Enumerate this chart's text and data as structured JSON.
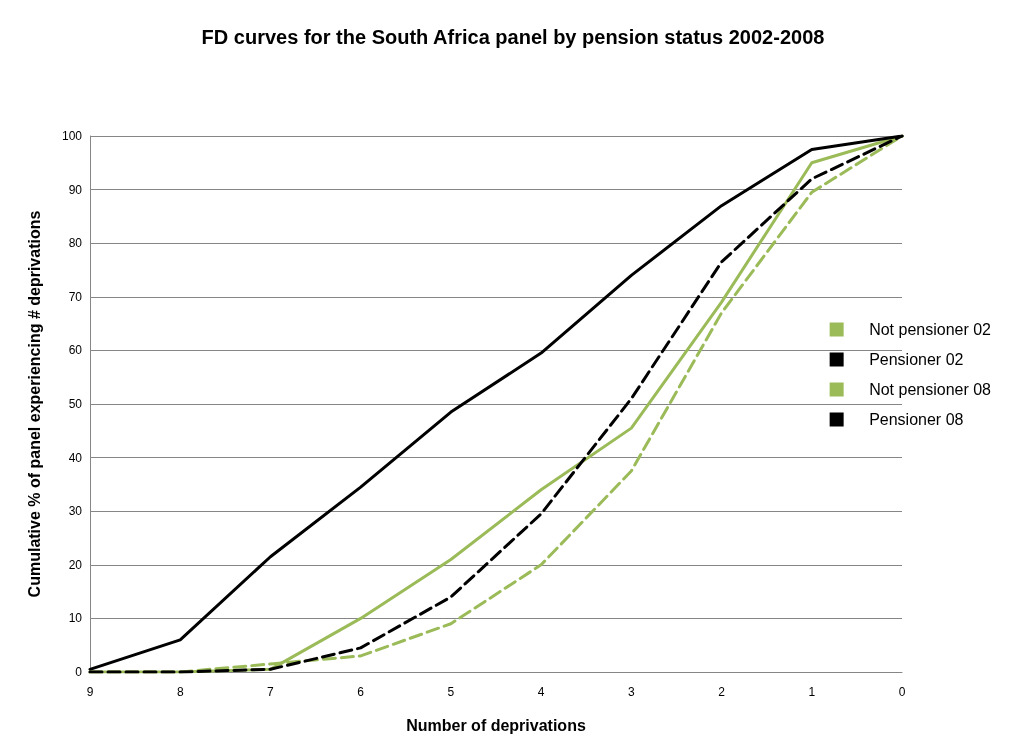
{
  "chart_data": {
    "type": "line",
    "title": "FD curves for the South Africa panel by pension status 2002-2008",
    "xlabel": "Number of deprivations",
    "ylabel": "Cumulative % of panel experiencing # deprivations",
    "categories": [
      "9",
      "8",
      "7",
      "6",
      "5",
      "4",
      "3",
      "2",
      "1",
      "0"
    ],
    "series": [
      {
        "name": "Not pensioner 02",
        "color": "#9bbb59",
        "line_style": "solid",
        "values": [
          0,
          0,
          0.5,
          10,
          21,
          34,
          45.5,
          69,
          95,
          100
        ]
      },
      {
        "name": "Pensioner 02",
        "color": "#000000",
        "line_style": "solid",
        "values": [
          0.5,
          6,
          21.5,
          34.5,
          48.5,
          59.5,
          74,
          87,
          97.5,
          100
        ]
      },
      {
        "name": "Not pensioner 08",
        "color": "#9bbb59",
        "line_style": "dashed",
        "values": [
          0,
          0,
          1.5,
          3,
          9,
          20,
          37.5,
          67,
          89.5,
          100
        ]
      },
      {
        "name": "Pensioner 08",
        "color": "#000000",
        "line_style": "dashed",
        "values": [
          0,
          0,
          0.5,
          4.5,
          14,
          29.5,
          51,
          76.5,
          92,
          100
        ]
      }
    ],
    "ylim": [
      0,
      100
    ],
    "yticks": [
      0,
      10,
      20,
      30,
      40,
      50,
      60,
      70,
      80,
      90,
      100
    ],
    "grid": "y",
    "legend": "right",
    "marker": "none"
  }
}
